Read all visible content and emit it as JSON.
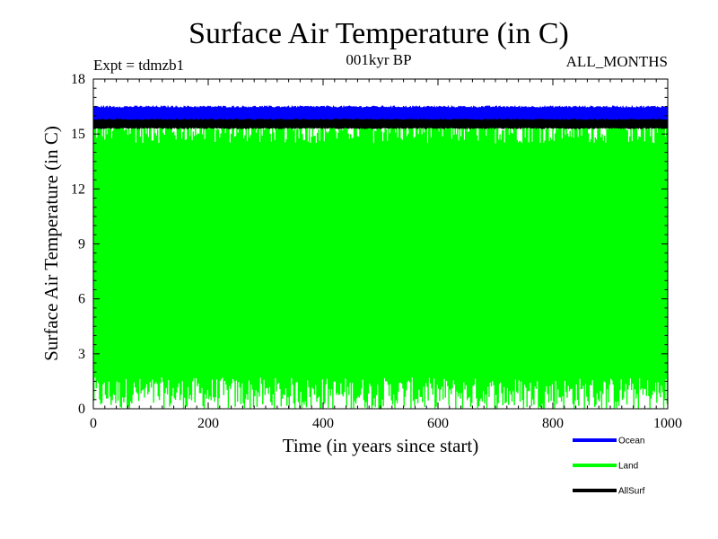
{
  "chart_data": {
    "type": "line",
    "title": "Surface Air Temperature (in C)",
    "subtitle": "001kyr BP",
    "experiment_label": "Expt = tdmzb1",
    "period_label": "ALL_MONTHS",
    "xlabel": "Time (in years since start)",
    "ylabel": "Surface Air Temperature (in C)",
    "xlim": [
      0,
      1000
    ],
    "ylim": [
      0,
      18
    ],
    "x_ticks": [
      0,
      200,
      400,
      600,
      800,
      1000
    ],
    "x_tick_labels": [
      "0",
      "200",
      "400",
      "600",
      "800",
      "1000"
    ],
    "y_ticks": [
      0,
      3,
      6,
      9,
      12,
      15,
      18
    ],
    "y_tick_labels": [
      "0",
      "3",
      "6",
      "9",
      "12",
      "15",
      "18"
    ],
    "grid": false,
    "legend_position": "bottom-right",
    "series": [
      {
        "name": "Ocean",
        "color": "#0000ff",
        "low": 15.7,
        "high": 16.5,
        "mean": 16.1,
        "min": 15.5,
        "max": 16.9
      },
      {
        "name": "Land",
        "color": "#00ff00",
        "low": 0.8,
        "high": 15.4,
        "mean": 8.1,
        "min": 0.0,
        "max": 15.9
      },
      {
        "name": "AllSurf",
        "color": "#000000",
        "low": 15.3,
        "high": 15.8,
        "mean": 15.55,
        "min": 15.1,
        "max": 16.0
      }
    ]
  }
}
